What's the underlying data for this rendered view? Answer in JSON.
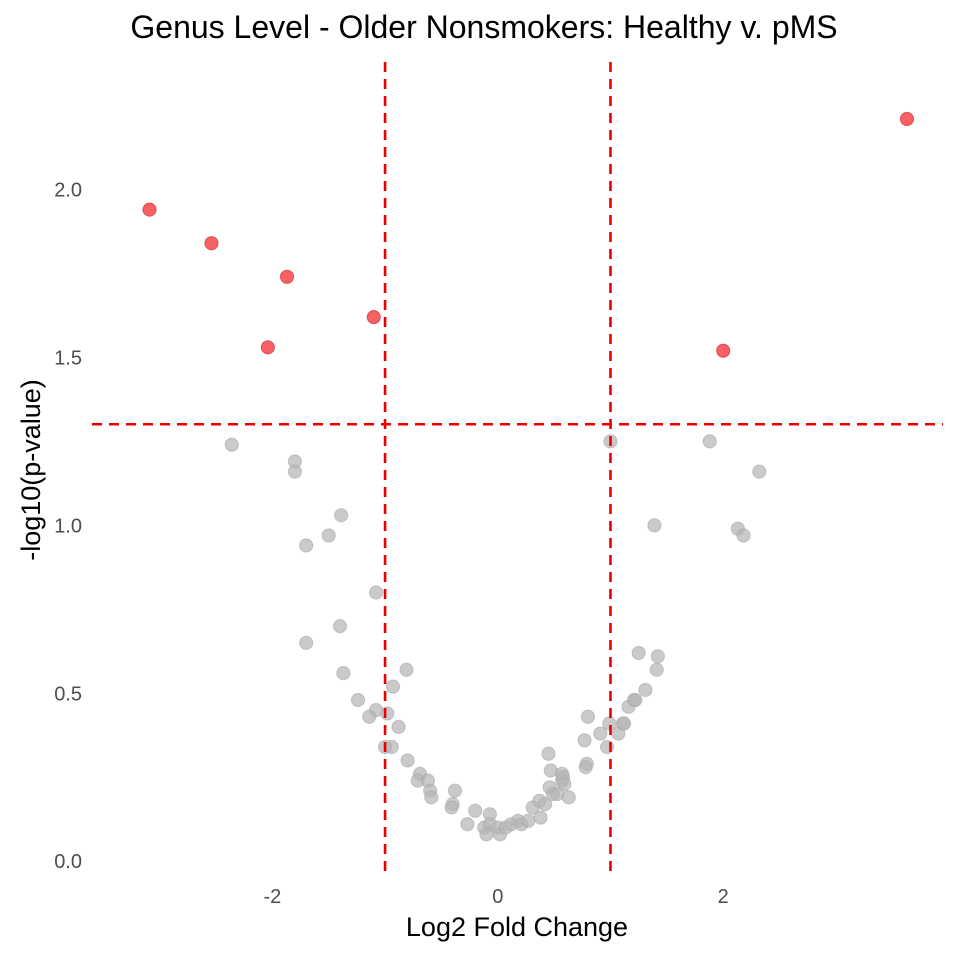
{
  "chart_data": {
    "type": "scatter",
    "title": "Genus Level - Older Nonsmokers: Healthy v. pMS",
    "xlabel": "Log2 Fold Change",
    "ylabel": "-log10(p-value)",
    "xlim": [
      -3.6,
      3.95
    ],
    "ylim": [
      -0.05,
      2.32
    ],
    "x_ticks": [
      {
        "value": -2,
        "label": "-2"
      },
      {
        "value": 0,
        "label": "0"
      },
      {
        "value": 2,
        "label": "2"
      }
    ],
    "y_ticks": [
      {
        "value": 0,
        "label": "0.0"
      },
      {
        "value": 0.5,
        "label": "0.5"
      },
      {
        "value": 1,
        "label": "1.0"
      },
      {
        "value": 1.5,
        "label": "1.5"
      },
      {
        "value": 2,
        "label": "2.0"
      }
    ],
    "grid": false,
    "legend": "none",
    "thresholds": {
      "log2fc": [
        -1,
        1
      ],
      "neg_log10_p": 1.301
    },
    "colors": {
      "significant": "#f5333a",
      "not_significant": "#b5b5b5",
      "threshold_line": "#ee0000"
    },
    "series": [
      {
        "group": "significant",
        "points": [
          {
            "x": 3.63,
            "y": 2.21
          },
          {
            "x": -3.09,
            "y": 1.94
          },
          {
            "x": -2.54,
            "y": 1.84
          },
          {
            "x": -1.87,
            "y": 1.74
          },
          {
            "x": -1.1,
            "y": 1.62
          },
          {
            "x": -2.04,
            "y": 1.53
          },
          {
            "x": 2.0,
            "y": 1.52
          }
        ]
      },
      {
        "group": "not_significant",
        "points": [
          {
            "x": -2.36,
            "y": 1.24
          },
          {
            "x": -1.8,
            "y": 1.19
          },
          {
            "x": -1.8,
            "y": 1.16
          },
          {
            "x": -1.39,
            "y": 1.03
          },
          {
            "x": -1.5,
            "y": 0.97
          },
          {
            "x": -1.7,
            "y": 0.94
          },
          {
            "x": -1.08,
            "y": 0.8
          },
          {
            "x": -1.4,
            "y": 0.7
          },
          {
            "x": -1.7,
            "y": 0.65
          },
          {
            "x": -1.37,
            "y": 0.56
          },
          {
            "x": -0.81,
            "y": 0.57
          },
          {
            "x": -0.93,
            "y": 0.52
          },
          {
            "x": -1.24,
            "y": 0.48
          },
          {
            "x": -1.08,
            "y": 0.45
          },
          {
            "x": -0.98,
            "y": 0.44
          },
          {
            "x": -1.14,
            "y": 0.43
          },
          {
            "x": -0.88,
            "y": 0.4
          },
          {
            "x": -0.94,
            "y": 0.34
          },
          {
            "x": -1.0,
            "y": 0.34
          },
          {
            "x": -0.8,
            "y": 0.3
          },
          {
            "x": -0.69,
            "y": 0.26
          },
          {
            "x": -0.71,
            "y": 0.24
          },
          {
            "x": -0.62,
            "y": 0.24
          },
          {
            "x": -0.6,
            "y": 0.21
          },
          {
            "x": -0.59,
            "y": 0.19
          },
          {
            "x": -0.38,
            "y": 0.21
          },
          {
            "x": -0.4,
            "y": 0.17
          },
          {
            "x": -0.41,
            "y": 0.16
          },
          {
            "x": -0.2,
            "y": 0.15
          },
          {
            "x": -0.07,
            "y": 0.14
          },
          {
            "x": -0.27,
            "y": 0.11
          },
          {
            "x": -0.12,
            "y": 0.1
          },
          {
            "x": -0.07,
            "y": 0.11
          },
          {
            "x": -0.1,
            "y": 0.08
          },
          {
            "x": 0.0,
            "y": 0.1
          },
          {
            "x": 0.02,
            "y": 0.08
          },
          {
            "x": 0.07,
            "y": 0.1
          },
          {
            "x": 0.12,
            "y": 0.11
          },
          {
            "x": 0.18,
            "y": 0.12
          },
          {
            "x": 0.21,
            "y": 0.11
          },
          {
            "x": 0.27,
            "y": 0.12
          },
          {
            "x": 0.31,
            "y": 0.16
          },
          {
            "x": 0.37,
            "y": 0.18
          },
          {
            "x": 0.38,
            "y": 0.13
          },
          {
            "x": 0.42,
            "y": 0.17
          },
          {
            "x": 0.46,
            "y": 0.22
          },
          {
            "x": 0.49,
            "y": 0.2
          },
          {
            "x": 0.47,
            "y": 0.27
          },
          {
            "x": 0.45,
            "y": 0.32
          },
          {
            "x": 0.53,
            "y": 0.2
          },
          {
            "x": 0.57,
            "y": 0.24
          },
          {
            "x": 0.57,
            "y": 0.26
          },
          {
            "x": 0.58,
            "y": 0.25
          },
          {
            "x": 0.59,
            "y": 0.23
          },
          {
            "x": 0.63,
            "y": 0.19
          },
          {
            "x": 0.79,
            "y": 0.29
          },
          {
            "x": 0.78,
            "y": 0.28
          },
          {
            "x": 0.77,
            "y": 0.36
          },
          {
            "x": 0.8,
            "y": 0.43
          },
          {
            "x": 0.91,
            "y": 0.38
          },
          {
            "x": 0.97,
            "y": 0.34
          },
          {
            "x": 0.99,
            "y": 0.41
          },
          {
            "x": 1.07,
            "y": 0.38
          },
          {
            "x": 1.11,
            "y": 0.41
          },
          {
            "x": 1.12,
            "y": 0.41
          },
          {
            "x": 1.16,
            "y": 0.46
          },
          {
            "x": 1.21,
            "y": 0.48
          },
          {
            "x": 1.22,
            "y": 0.48
          },
          {
            "x": 1.31,
            "y": 0.51
          },
          {
            "x": 1.25,
            "y": 0.62
          },
          {
            "x": 1.42,
            "y": 0.61
          },
          {
            "x": 1.41,
            "y": 0.57
          },
          {
            "x": 1.39,
            "y": 1.0
          },
          {
            "x": 1.0,
            "y": 1.25
          },
          {
            "x": 1.88,
            "y": 1.25
          },
          {
            "x": 2.32,
            "y": 1.16
          },
          {
            "x": 2.13,
            "y": 0.99
          },
          {
            "x": 2.18,
            "y": 0.97
          }
        ]
      }
    ]
  }
}
